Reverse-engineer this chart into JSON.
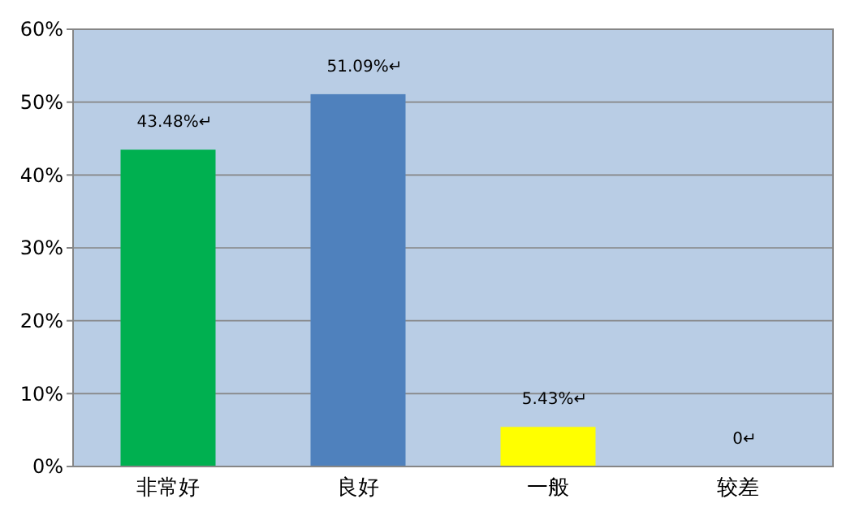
{
  "chart_data": {
    "type": "bar",
    "categories": [
      "非常好",
      "良好",
      "一般",
      "较差"
    ],
    "values": [
      43.48,
      51.09,
      5.43,
      0
    ],
    "colors": [
      "#00b050",
      "#4f81bd",
      "#ffff00",
      "#c0504d"
    ],
    "value_labels": [
      "43.48%↵",
      "51.09%↵",
      "5.43%↵",
      "0↵"
    ],
    "ylim": [
      0,
      60
    ],
    "yticks": [
      {
        "value": 0,
        "label": "0%"
      },
      {
        "value": 10,
        "label": "10%"
      },
      {
        "value": 20,
        "label": "20%"
      },
      {
        "value": 30,
        "label": "30%"
      },
      {
        "value": 40,
        "label": "40%"
      },
      {
        "value": 50,
        "label": "50%"
      },
      {
        "value": 60,
        "label": "60%"
      }
    ],
    "grid": "y"
  }
}
